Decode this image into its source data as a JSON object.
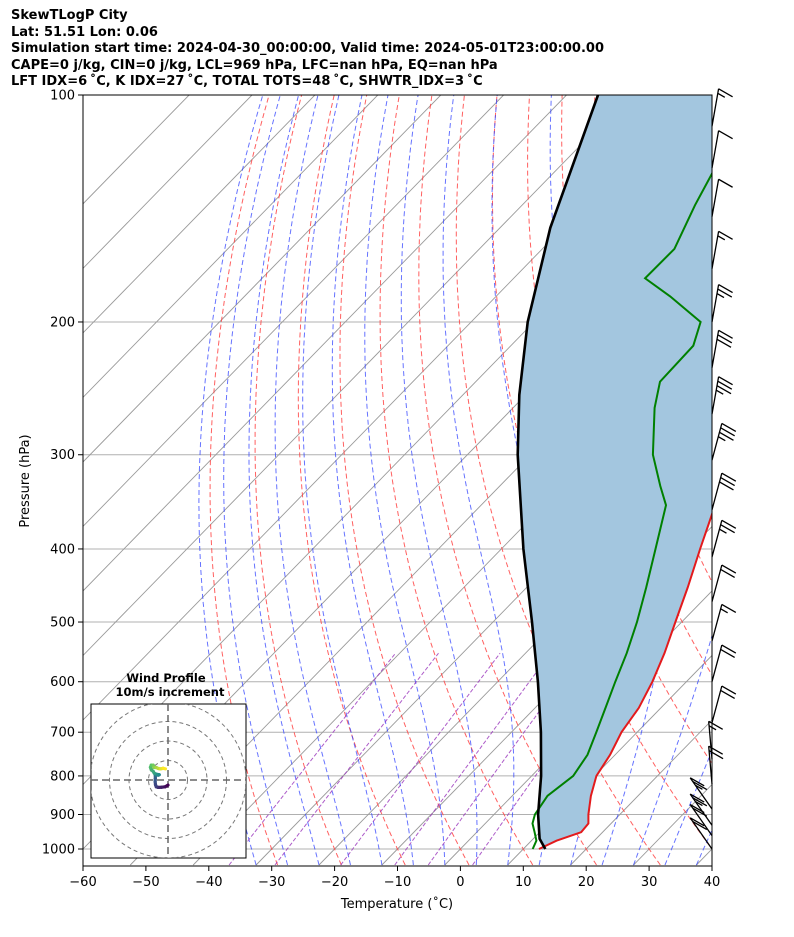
{
  "header": {
    "line1": "SkewTLogP City",
    "line2": "Lat: 51.51   Lon: 0.06",
    "line3": "Simulation start time: 2024-04-30_00:00:00, Valid time: 2024-05-01T23:00:00.00",
    "line4": "CAPE=0 j/kg, CIN=0 j/kg, LCL=969 hPa, LFC=nan hPa, EQ=nan hPa",
    "line5": "LFT IDX=6 ˚C, K IDX=27 ˚C, TOTAL TOTS=48 ˚C, SHWTR_IDX=3 ˚C"
  },
  "chart_data": {
    "type": "skew-t log-p",
    "xlabel": "Temperature (˚C)",
    "ylabel": "Pressure (hPa)",
    "x_ticks": [
      "−60",
      "−50",
      "−40",
      "−30",
      "−20",
      "−10",
      "0",
      "10",
      "20",
      "30",
      "40"
    ],
    "x_tick_values": [
      -60,
      -50,
      -40,
      -30,
      -20,
      -10,
      0,
      10,
      20,
      30,
      40
    ],
    "y_ticks": [
      "100",
      "200",
      "300",
      "400",
      "500",
      "600",
      "700",
      "800",
      "900",
      "1000"
    ],
    "y_tick_values": [
      100,
      200,
      300,
      400,
      500,
      600,
      700,
      800,
      900,
      1000
    ],
    "xlim": [
      -60,
      40
    ],
    "ylim": [
      1050,
      100
    ],
    "y_scale": "log",
    "grid": true,
    "colors": {
      "temperature": "#e31a1c",
      "dewpoint": "#008000",
      "parcel": "#000000",
      "shading": "#a3c6df",
      "dry_adiabats": "#ff4444",
      "moist_adiabats": "#3344ff",
      "mixing_ratio": "#9933bb",
      "isotherms": "#9a9a9a"
    },
    "temperature_profile": [
      {
        "p": 1000,
        "t": 12.5
      },
      {
        "p": 975,
        "t": 14.0
      },
      {
        "p": 950,
        "t": 16.6
      },
      {
        "p": 925,
        "t": 16.4
      },
      {
        "p": 900,
        "t": 15.0
      },
      {
        "p": 850,
        "t": 12.5
      },
      {
        "p": 800,
        "t": 10.3
      },
      {
        "p": 750,
        "t": 9.2
      },
      {
        "p": 700,
        "t": 7.5
      },
      {
        "p": 650,
        "t": 6.5
      },
      {
        "p": 600,
        "t": 4.6
      },
      {
        "p": 550,
        "t": 2.1
      },
      {
        "p": 500,
        "t": -1.0
      },
      {
        "p": 450,
        "t": -4.4
      },
      {
        "p": 400,
        "t": -8.4
      },
      {
        "p": 350,
        "t": -12.8
      },
      {
        "p": 300,
        "t": -18.4
      },
      {
        "p": 275,
        "t": -21.8
      },
      {
        "p": 250,
        "t": -25.6
      },
      {
        "p": 230,
        "t": -28.9
      },
      {
        "p": 225,
        "t": -29.6
      },
      {
        "p": 190,
        "t": -25.0
      },
      {
        "p": 160,
        "t": -22.3
      },
      {
        "p": 140,
        "t": -25.8
      },
      {
        "p": 125,
        "t": -31.8
      },
      {
        "p": 110,
        "t": -38.1
      },
      {
        "p": 100,
        "t": -42.4
      }
    ],
    "dewpoint_profile": [
      {
        "p": 1000,
        "t": 11.5
      },
      {
        "p": 975,
        "t": 10.8
      },
      {
        "p": 950,
        "t": 9.2
      },
      {
        "p": 925,
        "t": 7.5
      },
      {
        "p": 900,
        "t": 6.5
      },
      {
        "p": 850,
        "t": 5.6
      },
      {
        "p": 800,
        "t": 6.6
      },
      {
        "p": 750,
        "t": 5.6
      },
      {
        "p": 700,
        "t": 3.5
      },
      {
        "p": 650,
        "t": 1.2
      },
      {
        "p": 600,
        "t": -1.3
      },
      {
        "p": 550,
        "t": -3.9
      },
      {
        "p": 500,
        "t": -7.1
      },
      {
        "p": 450,
        "t": -11.0
      },
      {
        "p": 400,
        "t": -15.5
      },
      {
        "p": 350,
        "t": -20.6
      },
      {
        "p": 330,
        "t": -24.5
      },
      {
        "p": 300,
        "t": -30.5
      },
      {
        "p": 260,
        "t": -37.5
      },
      {
        "p": 240,
        "t": -40.7
      },
      {
        "p": 215,
        "t": -41.0
      },
      {
        "p": 200,
        "t": -43.5
      },
      {
        "p": 185,
        "t": -52.3
      },
      {
        "p": 175,
        "t": -59.1
      },
      {
        "p": 160,
        "t": -59.0
      },
      {
        "p": 140,
        "t": -62.5
      },
      {
        "p": 120,
        "t": -66.0
      },
      {
        "p": 100,
        "t": -69.0
      }
    ],
    "parcel_profile": [
      {
        "p": 1000,
        "t": 13.5
      },
      {
        "p": 969,
        "t": 11.0
      },
      {
        "p": 900,
        "t": 7.0
      },
      {
        "p": 800,
        "t": 1.5
      },
      {
        "p": 700,
        "t": -5.3
      },
      {
        "p": 600,
        "t": -13.6
      },
      {
        "p": 500,
        "t": -23.8
      },
      {
        "p": 400,
        "t": -36.5
      },
      {
        "p": 300,
        "t": -52.0
      },
      {
        "p": 250,
        "t": -61.0
      },
      {
        "p": 200,
        "t": -71.0
      },
      {
        "p": 150,
        "t": -82.0
      },
      {
        "p": 100,
        "t": -95.0
      }
    ],
    "wind_barbs": [
      {
        "p": 1000,
        "speed_kt": 20
      },
      {
        "p": 960,
        "speed_kt": 20
      },
      {
        "p": 930,
        "speed_kt": 25
      },
      {
        "p": 885,
        "speed_kt": 25
      },
      {
        "p": 820,
        "speed_kt": 20
      },
      {
        "p": 760,
        "speed_kt": 15
      },
      {
        "p": 680,
        "speed_kt": 20
      },
      {
        "p": 600,
        "speed_kt": 20
      },
      {
        "p": 530,
        "speed_kt": 15
      },
      {
        "p": 470,
        "speed_kt": 20
      },
      {
        "p": 410,
        "speed_kt": 25
      },
      {
        "p": 355,
        "speed_kt": 30
      },
      {
        "p": 305,
        "speed_kt": 35
      },
      {
        "p": 265,
        "speed_kt": 35
      },
      {
        "p": 230,
        "speed_kt": 30
      },
      {
        "p": 200,
        "speed_kt": 25
      },
      {
        "p": 170,
        "speed_kt": 15
      },
      {
        "p": 145,
        "speed_kt": 10
      },
      {
        "p": 125,
        "speed_kt": 10
      },
      {
        "p": 110,
        "speed_kt": 15
      }
    ],
    "hodograph": {
      "title_line1": "Wind Profile",
      "title_line2": "10m/s increment",
      "rings": [
        10,
        20,
        30,
        40
      ],
      "points": [
        [
          0,
          -2.6
        ],
        [
          -1.5,
          -3.5
        ],
        [
          -3.2,
          -3.7
        ],
        [
          -5,
          -3.8
        ],
        [
          -6,
          -3.5
        ],
        [
          -6.4,
          -2.5
        ],
        [
          -6.6,
          -0.8
        ],
        [
          -6.5,
          0.8
        ],
        [
          -6.5,
          2.2
        ],
        [
          -6,
          2.6
        ],
        [
          -5,
          2.5
        ],
        [
          -4.5,
          2.7
        ],
        [
          -6,
          3.0
        ],
        [
          -7,
          3.4
        ],
        [
          -7.5,
          4.3
        ],
        [
          -8.6,
          5.3
        ],
        [
          -9,
          6.5
        ],
        [
          -8.6,
          7.6
        ],
        [
          -7.6,
          7.6
        ],
        [
          -7.2,
          6.4
        ],
        [
          -6,
          6.4
        ],
        [
          -5,
          5.9
        ],
        [
          -3.8,
          5.7
        ],
        [
          -2.5,
          6.0
        ],
        [
          -1.3,
          5.7
        ]
      ]
    }
  }
}
